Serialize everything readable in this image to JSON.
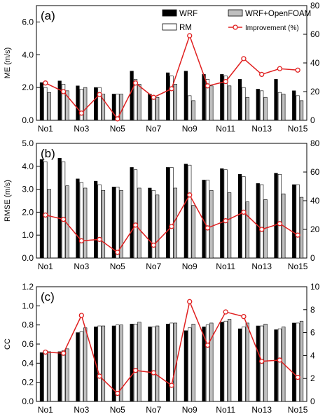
{
  "chart_data": [
    {
      "type": "bar",
      "panel_label": "(a)",
      "ylabel": "ME (m/s)",
      "ylim": [
        0,
        7
      ],
      "yticks": [
        "0.0",
        "2.0",
        "4.0",
        "6.0"
      ],
      "y2lim": [
        0,
        80
      ],
      "y2ticks": [
        "0",
        "20",
        "40",
        "60",
        "80"
      ],
      "categories": [
        "No1",
        "No2",
        "No3",
        "No4",
        "No5",
        "No6",
        "No7",
        "No8",
        "No9",
        "No10",
        "No11",
        "No12",
        "No13",
        "No14",
        "No15"
      ],
      "x_tick_labels": [
        "No1",
        "No3",
        "No5",
        "No7",
        "No9",
        "No11",
        "No13",
        "No15"
      ],
      "legend": {
        "placement": "top-right",
        "entries": [
          "WRF",
          "RM",
          "WRF+OpenFOAM",
          "Improvement (%)"
        ]
      },
      "series": [
        {
          "name": "WRF",
          "color": "#000000",
          "values": [
            2.3,
            2.4,
            2.1,
            2.0,
            1.6,
            3.0,
            1.6,
            2.9,
            3.0,
            2.8,
            2.8,
            2.5,
            1.9,
            2.5,
            1.8
          ]
        },
        {
          "name": "RM",
          "color": "#ffffff",
          "values": [
            2.0,
            2.2,
            1.9,
            2.0,
            1.6,
            2.5,
            1.5,
            2.7,
            1.5,
            2.5,
            2.7,
            2.0,
            1.8,
            1.7,
            1.5
          ]
        },
        {
          "name": "WRF+OpenFOAM",
          "color": "#bfbfbf",
          "values": [
            1.7,
            1.8,
            2.0,
            1.6,
            1.6,
            2.2,
            1.4,
            2.2,
            1.2,
            2.1,
            2.1,
            1.4,
            1.4,
            1.6,
            1.2
          ]
        },
        {
          "name": "Improvement (%)",
          "axis": "right",
          "color": "#e02020",
          "values": [
            26,
            20,
            5,
            18,
            1,
            26,
            16,
            22,
            59,
            24,
            27,
            43,
            32,
            36,
            35
          ]
        }
      ]
    },
    {
      "type": "bar",
      "panel_label": "(b)",
      "ylabel": "RMSE (m/s)",
      "ylim": [
        0,
        5
      ],
      "yticks": [
        "0.0",
        "1.0",
        "2.0",
        "3.0",
        "4.0",
        "5.0"
      ],
      "y2lim": [
        0,
        80
      ],
      "y2ticks": [
        "0",
        "20",
        "40",
        "60",
        "80"
      ],
      "categories": [
        "No1",
        "No2",
        "No3",
        "No4",
        "No5",
        "No6",
        "No7",
        "No8",
        "No9",
        "No10",
        "No11",
        "No12",
        "No13",
        "No14",
        "No15"
      ],
      "x_tick_labels": [
        "No1",
        "No3",
        "No5",
        "No7",
        "No9",
        "No11",
        "No13",
        "No15"
      ],
      "series": [
        {
          "name": "WRF",
          "color": "#000000",
          "values": [
            4.3,
            4.35,
            3.45,
            3.35,
            3.1,
            3.95,
            3.05,
            3.95,
            4.1,
            3.4,
            3.9,
            3.65,
            3.25,
            3.7,
            3.2
          ]
        },
        {
          "name": "RM",
          "color": "#ffffff",
          "values": [
            4.2,
            4.2,
            3.3,
            3.2,
            3.1,
            3.85,
            2.95,
            3.95,
            4.05,
            3.4,
            3.85,
            3.55,
            3.2,
            3.65,
            3.2
          ]
        },
        {
          "name": "WRF+OpenFOAM",
          "color": "#bfbfbf",
          "values": [
            3.0,
            3.15,
            3.05,
            2.95,
            2.95,
            3.05,
            2.75,
            3.05,
            2.3,
            2.95,
            2.85,
            2.45,
            2.55,
            2.8,
            2.65
          ]
        },
        {
          "name": "Improvement (%)",
          "axis": "right",
          "color": "#e02020",
          "values": [
            30,
            27,
            12,
            13,
            4,
            23,
            9,
            22,
            44,
            21,
            26,
            32,
            20,
            24,
            16
          ]
        }
      ]
    },
    {
      "type": "bar",
      "panel_label": "(c)",
      "ylabel": "CC",
      "ylim": [
        0,
        1.2
      ],
      "yticks": [
        "0.0",
        "0.2",
        "0.4",
        "0.6",
        "0.8",
        "1.0",
        "1.2"
      ],
      "y2lim": [
        0,
        10
      ],
      "y2ticks": [
        "0",
        "2",
        "4",
        "6",
        "8",
        "10"
      ],
      "categories": [
        "No1",
        "No2",
        "No3",
        "No4",
        "No5",
        "No6",
        "No7",
        "No8",
        "No9",
        "No10",
        "No11",
        "No12",
        "No13",
        "No14",
        "No15"
      ],
      "x_tick_labels": [
        "No1",
        "No3",
        "No5",
        "No7",
        "No9",
        "No11",
        "No13",
        "No15"
      ],
      "series": [
        {
          "name": "WRF",
          "color": "#000000",
          "values": [
            0.51,
            0.52,
            0.72,
            0.78,
            0.79,
            0.81,
            0.78,
            0.81,
            0.74,
            0.78,
            0.83,
            0.76,
            0.79,
            0.75,
            0.82
          ]
        },
        {
          "name": "RM",
          "color": "#ffffff",
          "values": [
            0.51,
            0.53,
            0.73,
            0.79,
            0.8,
            0.81,
            0.78,
            0.82,
            0.77,
            0.8,
            0.84,
            0.78,
            0.79,
            0.76,
            0.82
          ]
        },
        {
          "name": "WRF+OpenFOAM",
          "color": "#bfbfbf",
          "values": [
            0.52,
            0.55,
            0.77,
            0.79,
            0.8,
            0.83,
            0.79,
            0.82,
            0.81,
            0.82,
            0.86,
            0.82,
            0.81,
            0.78,
            0.84
          ]
        },
        {
          "name": "Improvement (%)",
          "axis": "right",
          "color": "#e02020",
          "values": [
            4.3,
            4.2,
            7.5,
            2.2,
            0.7,
            2.7,
            2.5,
            1.4,
            8.7,
            4.9,
            7.8,
            7.4,
            3.5,
            3.6,
            2.1
          ]
        }
      ]
    }
  ]
}
